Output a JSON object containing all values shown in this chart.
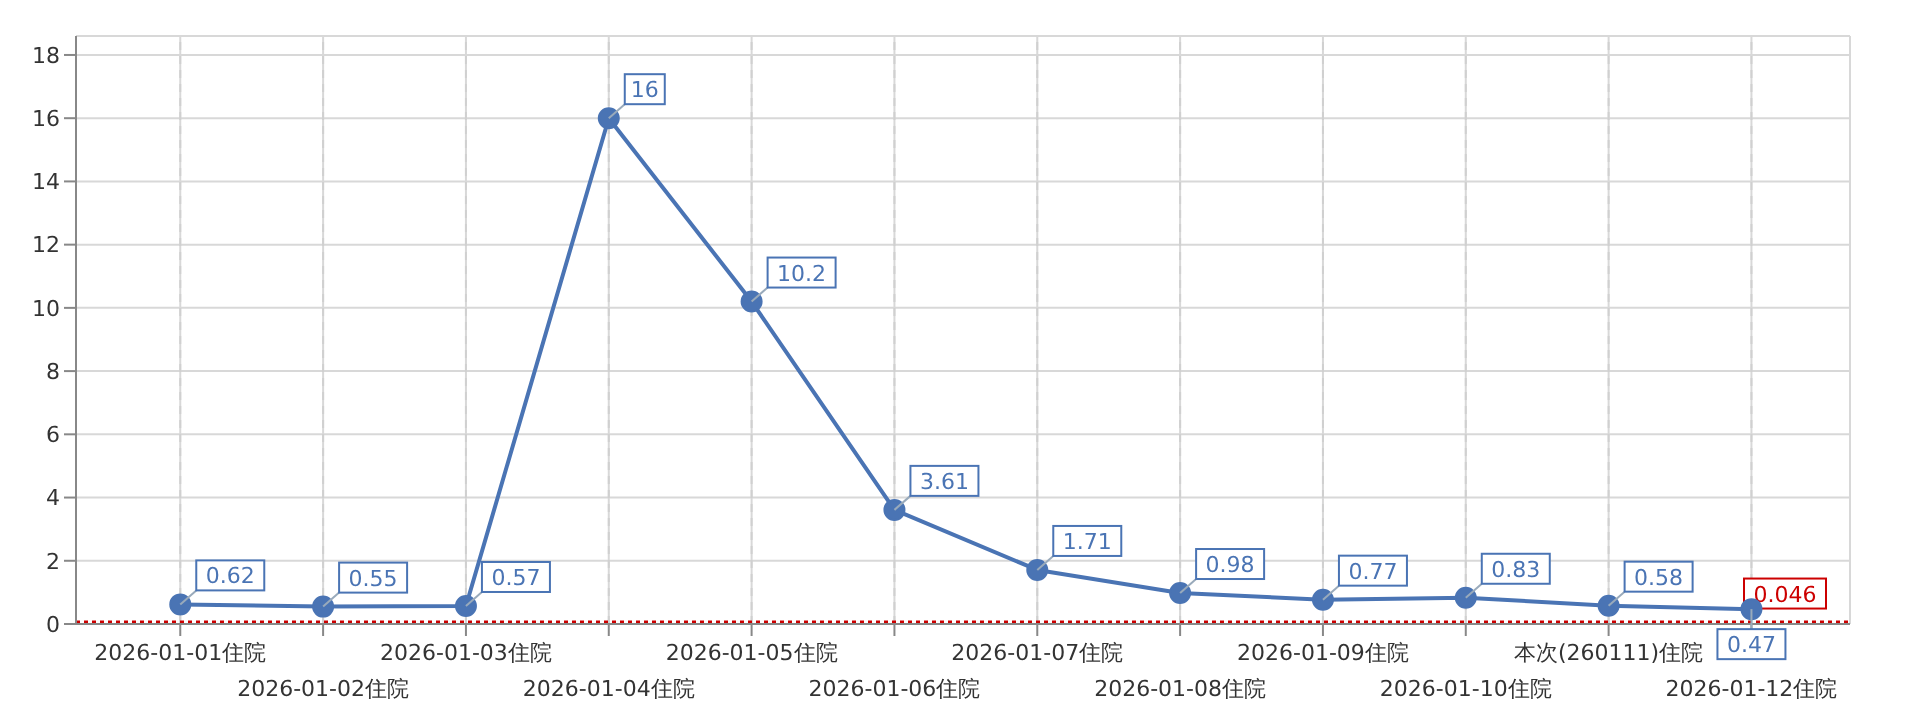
{
  "chart_data": {
    "type": "line",
    "categories": [
      "2026-01-01住院",
      "2026-01-02住院",
      "2026-01-03住院",
      "2026-01-04住院",
      "2026-01-05住院",
      "2026-01-06住院",
      "2026-01-07住院",
      "2026-01-08住院",
      "2026-01-09住院",
      "2026-01-10住院",
      "本次(260111)住院",
      "2026-01-12住院"
    ],
    "series": [
      {
        "color": "#4a74b4",
        "values": [
          0.62,
          0.55,
          0.57,
          16,
          10.2,
          3.61,
          1.71,
          0.98,
          0.77,
          0.83,
          0.58,
          0.47
        ]
      }
    ],
    "ylim": [
      0,
      18.6
    ],
    "yticks": [
      0,
      2,
      4,
      6,
      8,
      10,
      12,
      14,
      16,
      18
    ],
    "ref_lines": [
      {
        "axis": "y",
        "value": 0.046,
        "label": "0.046",
        "color": "#cc0000",
        "line_style": "dotted"
      }
    ],
    "data_labels": true,
    "grid": true,
    "marker": "circle",
    "line_style": "solid"
  }
}
